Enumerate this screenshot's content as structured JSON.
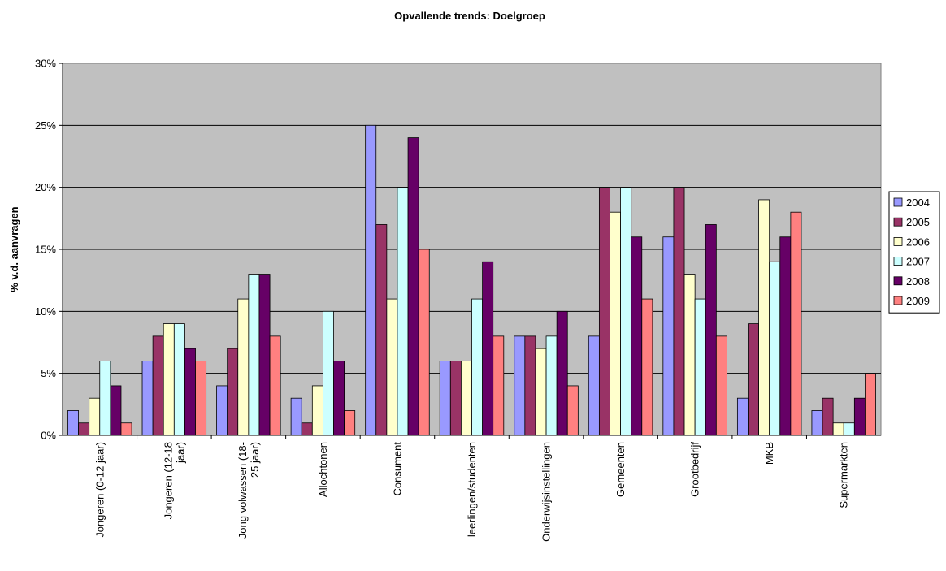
{
  "chart_data": {
    "type": "bar",
    "title": "Opvallende trends: Doelgroep",
    "xlabel": "",
    "ylabel": "% v.d. aanvragen",
    "ylim": [
      0,
      30
    ],
    "yticks": [
      "0%",
      "5%",
      "10%",
      "15%",
      "20%",
      "25%",
      "30%"
    ],
    "grid": true,
    "legend_position": "right",
    "plot_background": "#C0C0C0",
    "categories": [
      [
        "Jongeren (0-12 jaar)"
      ],
      [
        "Jongeren (12-18",
        "jaar)"
      ],
      [
        "Jong volwassen (18-",
        "25 jaar)"
      ],
      [
        "Allochtonen"
      ],
      [
        "Consument"
      ],
      [
        "leerlingen/studenten"
      ],
      [
        "Onderwijsinstellingen"
      ],
      [
        "Gemeenten"
      ],
      [
        "Grootbedrijf"
      ],
      [
        "MKB"
      ],
      [
        "Supermarkten"
      ]
    ],
    "series": [
      {
        "name": "2004",
        "color": "#9999FF",
        "values": [
          2,
          6,
          4,
          3,
          25,
          6,
          8,
          8,
          16,
          3,
          2
        ]
      },
      {
        "name": "2005",
        "color": "#993366",
        "values": [
          1,
          8,
          7,
          1,
          17,
          6,
          8,
          20,
          20,
          9,
          3
        ]
      },
      {
        "name": "2006",
        "color": "#FFFFCC",
        "values": [
          3,
          9,
          11,
          4,
          11,
          6,
          7,
          18,
          13,
          19,
          1
        ]
      },
      {
        "name": "2007",
        "color": "#CCFFFF",
        "values": [
          6,
          9,
          13,
          10,
          20,
          11,
          8,
          20,
          11,
          14,
          1
        ]
      },
      {
        "name": "2008",
        "color": "#660066",
        "values": [
          4,
          7,
          13,
          6,
          24,
          14,
          10,
          16,
          17,
          16,
          3
        ]
      },
      {
        "name": "2009",
        "color": "#FF8080",
        "values": [
          1,
          6,
          8,
          2,
          15,
          8,
          4,
          11,
          8,
          18,
          5
        ]
      }
    ]
  }
}
